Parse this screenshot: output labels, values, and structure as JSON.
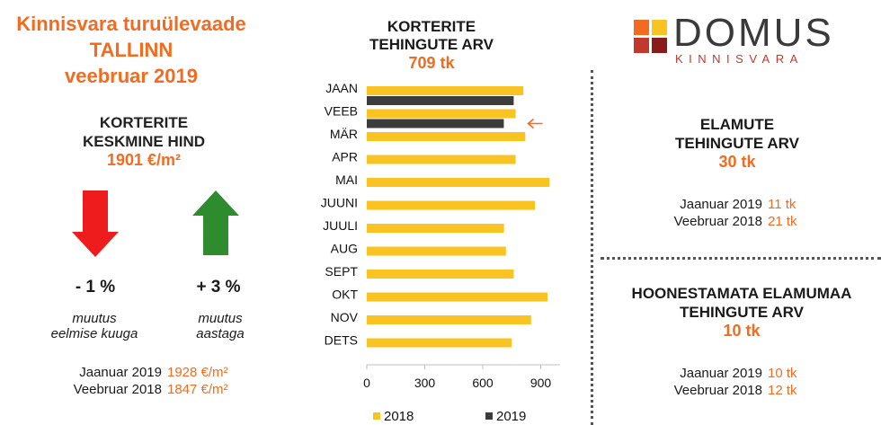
{
  "header": {
    "line1": "Kinnisvara turuülevaade",
    "line2": "TALLINN",
    "line3": "veebruar 2019"
  },
  "price": {
    "head1": "KORTERITE",
    "head2": "KESKMINE HIND",
    "value": "1901 €/m²",
    "monthly_change": "- 1 %",
    "monthly_caption1": "muutus",
    "monthly_caption2": "eelmise kuuga",
    "yearly_change": "+ 3 %",
    "yearly_caption1": "muutus",
    "yearly_caption2": "aastaga",
    "down_color": "#ee1c1c",
    "up_color": "#2e8b2e",
    "cmp": [
      {
        "label": "Jaanuar 2019",
        "value": "1928 €/m²"
      },
      {
        "label": "Veebruar 2018",
        "value": "1847 €/m²"
      }
    ]
  },
  "chart_header": {
    "line1": "KORTERITE",
    "line2": "TEHINGUTE ARV",
    "total": "709 tk"
  },
  "chart_data": {
    "type": "bar",
    "orientation": "horizontal",
    "categories": [
      "JAAN",
      "VEEB",
      "MÄR",
      "APR",
      "MAI",
      "JUUNI",
      "JUULI",
      "AUG",
      "SEPT",
      "OKT",
      "NOV",
      "DETS"
    ],
    "series": [
      {
        "name": "2018",
        "color": "#f9c321",
        "values": [
          810,
          770,
          820,
          770,
          945,
          870,
          710,
          720,
          760,
          935,
          850,
          750
        ]
      },
      {
        "name": "2019",
        "color": "#3c3c3c",
        "values": [
          760,
          709,
          null,
          null,
          null,
          null,
          null,
          null,
          null,
          null,
          null,
          null
        ]
      }
    ],
    "xlim": [
      0,
      1000
    ],
    "xticks": [
      0,
      300,
      600,
      900
    ],
    "legend_position": "bottom",
    "marker_category": "VEEB",
    "marker_color": "#f26b21"
  },
  "houses": {
    "head1": "ELAMUTE",
    "head2": "TEHINGUTE ARV",
    "value": "30 tk",
    "cmp": [
      {
        "label": "Jaanuar 2019",
        "value": "11 tk"
      },
      {
        "label": "Veebruar 2018",
        "value": "21 tk"
      }
    ]
  },
  "land": {
    "head1": "HOONESTAMATA ELAMUMAA",
    "head2": "TEHINGUTE ARV",
    "value": "10 tk",
    "cmp": [
      {
        "label": "Jaanuar 2019",
        "value": "10 tk"
      },
      {
        "label": "Veebruar 2018",
        "value": "12 tk"
      }
    ]
  },
  "logo": {
    "word": "DOMUS",
    "sub": "KINNISVARA",
    "colors": [
      "#f26b21",
      "#f9c321",
      "#c0392b",
      "#8b1a1a"
    ]
  }
}
